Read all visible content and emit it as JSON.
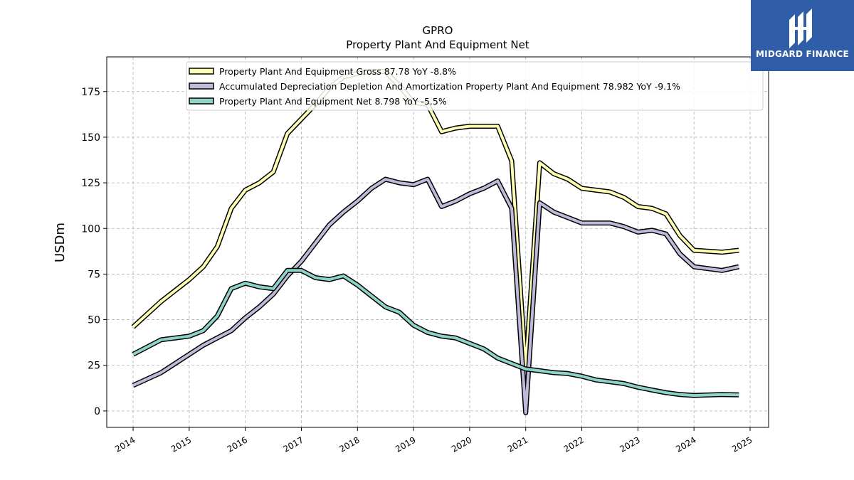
{
  "branding": {
    "name": "MIDGARD FINANCE",
    "color": "#2f5da8",
    "icon": "midgard-logo-icon"
  },
  "chart_data": {
    "type": "line",
    "title": "GPRO",
    "subtitle": "Property Plant And Equipment Net",
    "xlabel": "",
    "ylabel": "USDm",
    "xlim": [
      2013.53,
      2025.33
    ],
    "ylim": [
      -9,
      194
    ],
    "x_ticks": [
      "2014",
      "2015",
      "2016",
      "2017",
      "2018",
      "2019",
      "2020",
      "2021",
      "2022",
      "2023",
      "2024",
      "2025"
    ],
    "y_ticks": [
      "0",
      "25",
      "50",
      "75",
      "100",
      "125",
      "150",
      "175"
    ],
    "grid": true,
    "legend_position": "top-center",
    "x": [
      2014.0,
      2014.5,
      2015.0,
      2015.25,
      2015.5,
      2015.75,
      2016.0,
      2016.25,
      2016.5,
      2016.75,
      2017.0,
      2017.25,
      2017.5,
      2017.75,
      2018.0,
      2018.25,
      2018.5,
      2018.75,
      2019.0,
      2019.25,
      2019.5,
      2019.75,
      2020.0,
      2020.25,
      2020.5,
      2020.75,
      2021.0,
      2021.25,
      2021.5,
      2021.75,
      2022.0,
      2022.25,
      2022.5,
      2022.75,
      2023.0,
      2023.25,
      2023.5,
      2023.75,
      2024.0,
      2024.5,
      2024.8
    ],
    "series": [
      {
        "name": "Property Plant And Equipment Gross",
        "legend": "Property Plant And Equipment Gross  87.78 YoY -8.8%",
        "color": "#ffffb3",
        "values": [
          46,
          60,
          72,
          79,
          90,
          111,
          121,
          125,
          131,
          152,
          160,
          168,
          177,
          183,
          185,
          186,
          186,
          178,
          169,
          168,
          153,
          155,
          156,
          156,
          156,
          137,
          23,
          136,
          130,
          127,
          122,
          121,
          120,
          117,
          112,
          111,
          108,
          96,
          88,
          87,
          88
        ]
      },
      {
        "name": "Accumulated Depreciation Depletion And Amortization Property Plant And Equipment",
        "legend": "Accumulated Depreciation Depletion And Amortization Property Plant And Equipment  78.982 YoY -9.1%",
        "color": "#bebada",
        "values": [
          14,
          21,
          31,
          36,
          40,
          44,
          51,
          57,
          64,
          74,
          82,
          92,
          102,
          109,
          115,
          122,
          127,
          125,
          124,
          127,
          112,
          115,
          119,
          122,
          126,
          111,
          -1,
          114,
          109,
          106,
          103,
          103,
          103,
          101,
          98,
          99,
          97,
          86,
          79,
          77,
          79
        ]
      },
      {
        "name": "Property Plant And Equipment Net",
        "legend": "Property Plant And Equipment Net  8.798 YoY -5.5%",
        "color": "#8dd3c7",
        "values": [
          31,
          39,
          41,
          44,
          52,
          67,
          70,
          68,
          67,
          77,
          77,
          73,
          72,
          74,
          69,
          63,
          57,
          54,
          47,
          43,
          41,
          40,
          37,
          34,
          29,
          26,
          23,
          22,
          21,
          20.5,
          19,
          17,
          16,
          15,
          13,
          11.5,
          10,
          9,
          8.5,
          9,
          8.8
        ]
      }
    ]
  }
}
